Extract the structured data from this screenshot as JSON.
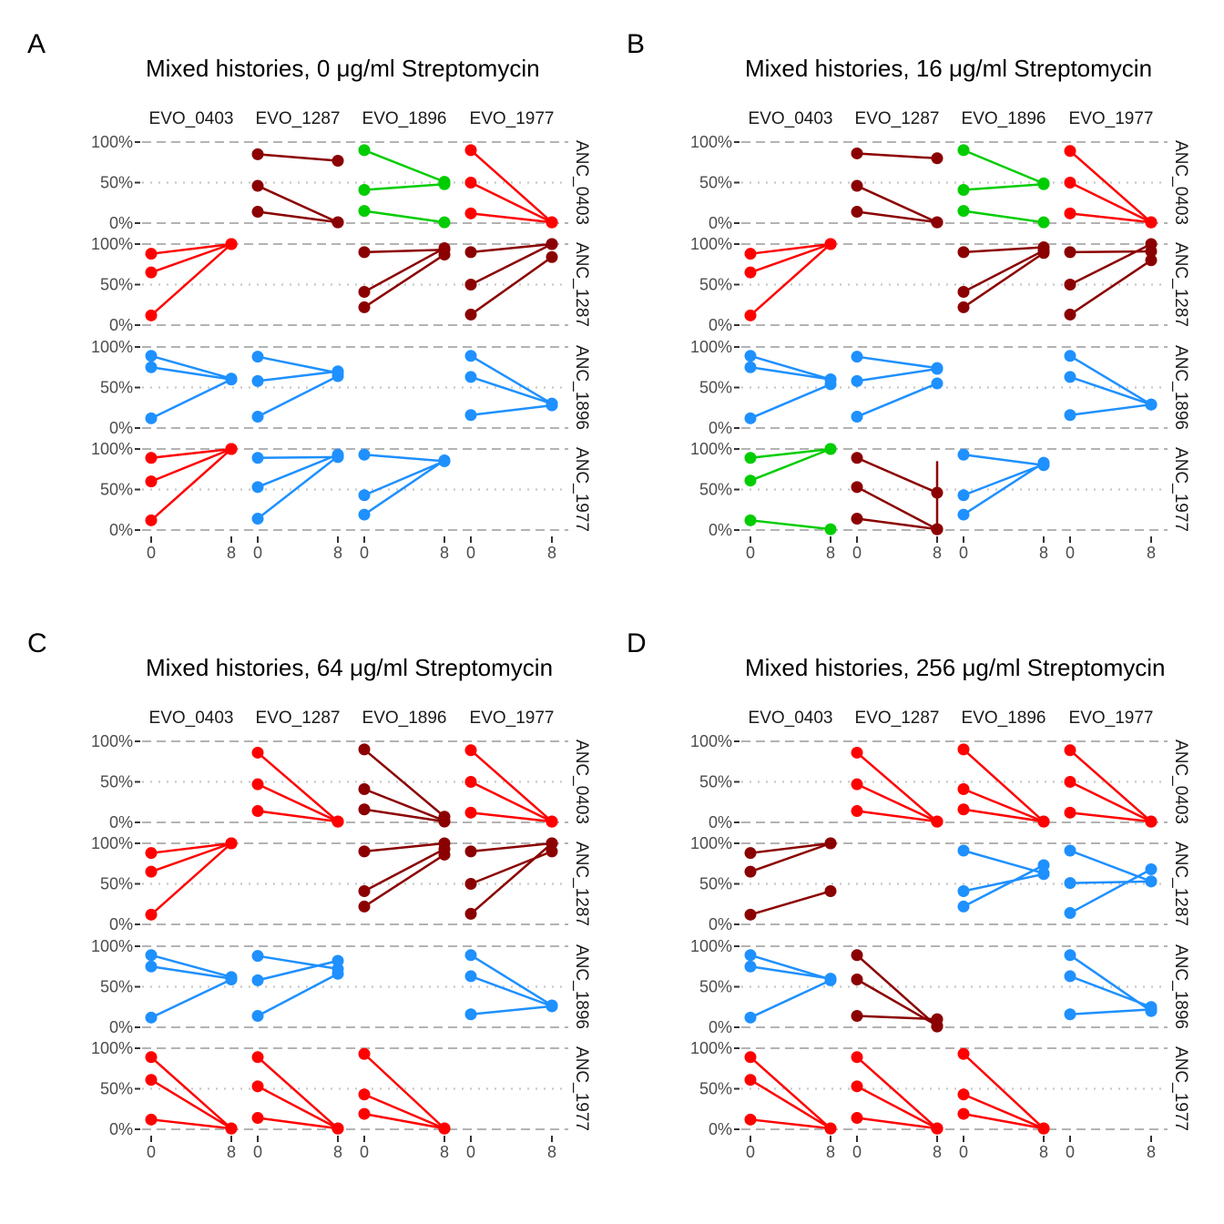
{
  "chart_data": [
    {
      "type": "line",
      "panel_label": "A",
      "title": "Mixed histories, 0 μg/ml Streptomycin",
      "x_ticks": [
        0,
        8
      ],
      "y_ticks": [
        "0%",
        "50%",
        "100%"
      ],
      "ylim": [
        0,
        1
      ],
      "columns": [
        "EVO_0403",
        "EVO_1287",
        "EVO_1896",
        "EVO_1977"
      ],
      "rows": [
        "ANC_0403",
        "ANC_1287",
        "ANC_1896",
        "ANC_1977"
      ],
      "facets": [
        {
          "row": 0,
          "col": 1,
          "color": "#8B0000",
          "lines": [
            [
              0.85,
              0.77
            ],
            [
              0.46,
              0.01
            ],
            [
              0.14,
              0.01
            ]
          ]
        },
        {
          "row": 0,
          "col": 2,
          "color": "#00CD00",
          "lines": [
            [
              0.9,
              0.51
            ],
            [
              0.41,
              0.48
            ],
            [
              0.15,
              0.01
            ]
          ]
        },
        {
          "row": 0,
          "col": 3,
          "color": "#FF0000",
          "lines": [
            [
              0.9,
              0.01
            ],
            [
              0.5,
              0.01
            ],
            [
              0.12,
              0.01
            ]
          ]
        },
        {
          "row": 1,
          "col": 0,
          "color": "#FF0000",
          "lines": [
            [
              0.88,
              1.0
            ],
            [
              0.65,
              1.0
            ],
            [
              0.12,
              1.0
            ]
          ]
        },
        {
          "row": 1,
          "col": 2,
          "color": "#8B0000",
          "lines": [
            [
              0.9,
              0.93
            ],
            [
              0.41,
              0.95
            ],
            [
              0.22,
              0.87
            ]
          ]
        },
        {
          "row": 1,
          "col": 3,
          "color": "#8B0000",
          "lines": [
            [
              0.9,
              1.0
            ],
            [
              0.5,
              1.0
            ],
            [
              0.13,
              0.84
            ]
          ]
        },
        {
          "row": 2,
          "col": 0,
          "color": "#1E90FF",
          "lines": [
            [
              0.89,
              0.61
            ],
            [
              0.75,
              0.6
            ],
            [
              0.12,
              0.6
            ]
          ]
        },
        {
          "row": 2,
          "col": 1,
          "color": "#1E90FF",
          "lines": [
            [
              0.88,
              0.68
            ],
            [
              0.58,
              0.7
            ],
            [
              0.14,
              0.64
            ]
          ]
        },
        {
          "row": 2,
          "col": 3,
          "color": "#1E90FF",
          "lines": [
            [
              0.89,
              0.3
            ],
            [
              0.63,
              0.3
            ],
            [
              0.16,
              0.28
            ]
          ]
        },
        {
          "row": 3,
          "col": 0,
          "color": "#FF0000",
          "lines": [
            [
              0.89,
              1.0
            ],
            [
              0.6,
              1.0
            ],
            [
              0.12,
              1.0
            ]
          ]
        },
        {
          "row": 3,
          "col": 1,
          "color": "#1E90FF",
          "lines": [
            [
              0.89,
              0.9
            ],
            [
              0.53,
              0.93
            ],
            [
              0.14,
              0.91
            ]
          ]
        },
        {
          "row": 3,
          "col": 2,
          "color": "#1E90FF",
          "lines": [
            [
              0.93,
              0.85
            ],
            [
              0.43,
              0.85
            ],
            [
              0.19,
              0.86
            ]
          ]
        }
      ]
    },
    {
      "type": "line",
      "panel_label": "B",
      "title": "Mixed histories, 16 μg/ml Streptomycin",
      "x_ticks": [
        0,
        8
      ],
      "y_ticks": [
        "0%",
        "50%",
        "100%"
      ],
      "ylim": [
        0,
        1
      ],
      "columns": [
        "EVO_0403",
        "EVO_1287",
        "EVO_1896",
        "EVO_1977"
      ],
      "rows": [
        "ANC_0403",
        "ANC_1287",
        "ANC_1896",
        "ANC_1977"
      ],
      "facets": [
        {
          "row": 0,
          "col": 1,
          "color": "#8B0000",
          "lines": [
            [
              0.86,
              0.8
            ],
            [
              0.46,
              0.01
            ],
            [
              0.14,
              0.01
            ]
          ]
        },
        {
          "row": 0,
          "col": 2,
          "color": "#00CD00",
          "lines": [
            [
              0.9,
              0.49
            ],
            [
              0.41,
              0.48
            ],
            [
              0.15,
              0.01
            ]
          ]
        },
        {
          "row": 0,
          "col": 3,
          "color": "#FF0000",
          "lines": [
            [
              0.89,
              0.01
            ],
            [
              0.5,
              0.01
            ],
            [
              0.12,
              0.01
            ]
          ]
        },
        {
          "row": 1,
          "col": 0,
          "color": "#FF0000",
          "lines": [
            [
              0.88,
              1.0
            ],
            [
              0.65,
              1.0
            ],
            [
              0.12,
              1.0
            ]
          ]
        },
        {
          "row": 1,
          "col": 2,
          "color": "#8B0000",
          "lines": [
            [
              0.9,
              0.96
            ],
            [
              0.41,
              0.92
            ],
            [
              0.22,
              0.89
            ]
          ]
        },
        {
          "row": 1,
          "col": 3,
          "color": "#8B0000",
          "lines": [
            [
              0.9,
              0.91
            ],
            [
              0.5,
              1.0
            ],
            [
              0.13,
              0.8
            ]
          ]
        },
        {
          "row": 2,
          "col": 0,
          "color": "#1E90FF",
          "lines": [
            [
              0.89,
              0.6
            ],
            [
              0.75,
              0.6
            ],
            [
              0.12,
              0.54
            ]
          ]
        },
        {
          "row": 2,
          "col": 1,
          "color": "#1E90FF",
          "lines": [
            [
              0.88,
              0.74
            ],
            [
              0.58,
              0.73
            ],
            [
              0.14,
              0.55
            ]
          ]
        },
        {
          "row": 2,
          "col": 3,
          "color": "#1E90FF",
          "lines": [
            [
              0.89,
              0.29
            ],
            [
              0.63,
              0.29
            ],
            [
              0.16,
              0.29
            ]
          ]
        },
        {
          "row": 3,
          "col": 0,
          "color": "#00CD00",
          "lines": [
            [
              0.89,
              1.0
            ],
            [
              0.61,
              1.0
            ],
            [
              0.12,
              0.01
            ]
          ]
        },
        {
          "row": 3,
          "col": 1,
          "color": "#8B0000",
          "lines": [
            [
              0.89,
              0.46
            ],
            [
              0.53,
              0.01
            ],
            [
              0.14,
              0.01
            ]
          ]
        },
        {
          "row": 3,
          "col": 2,
          "color": "#1E90FF",
          "lines": [
            [
              0.93,
              0.8
            ],
            [
              0.43,
              0.81
            ],
            [
              0.19,
              0.83
            ]
          ]
        }
      ],
      "error_bars": [
        {
          "row": 3,
          "col": 1,
          "x": 8,
          "low": 0.0,
          "high": 0.85
        }
      ]
    },
    {
      "type": "line",
      "panel_label": "C",
      "title": "Mixed histories, 64 μg/ml Streptomycin",
      "x_ticks": [
        0,
        8
      ],
      "y_ticks": [
        "0%",
        "50%",
        "100%"
      ],
      "ylim": [
        0,
        1
      ],
      "columns": [
        "EVO_0403",
        "EVO_1287",
        "EVO_1896",
        "EVO_1977"
      ],
      "rows": [
        "ANC_0403",
        "ANC_1287",
        "ANC_1896",
        "ANC_1977"
      ],
      "facets": [
        {
          "row": 0,
          "col": 1,
          "color": "#FF0000",
          "lines": [
            [
              0.86,
              0.01
            ],
            [
              0.47,
              0.01
            ],
            [
              0.14,
              0.01
            ]
          ]
        },
        {
          "row": 0,
          "col": 2,
          "color": "#8B0000",
          "lines": [
            [
              0.9,
              0.07
            ],
            [
              0.41,
              0.02
            ],
            [
              0.16,
              0.01
            ]
          ]
        },
        {
          "row": 0,
          "col": 3,
          "color": "#FF0000",
          "lines": [
            [
              0.89,
              0.01
            ],
            [
              0.5,
              0.01
            ],
            [
              0.12,
              0.01
            ]
          ]
        },
        {
          "row": 1,
          "col": 0,
          "color": "#FF0000",
          "lines": [
            [
              0.88,
              1.0
            ],
            [
              0.65,
              1.0
            ],
            [
              0.12,
              1.0
            ]
          ]
        },
        {
          "row": 1,
          "col": 2,
          "color": "#8B0000",
          "lines": [
            [
              0.9,
              1.0
            ],
            [
              0.41,
              0.93
            ],
            [
              0.22,
              0.86
            ]
          ]
        },
        {
          "row": 1,
          "col": 3,
          "color": "#8B0000",
          "lines": [
            [
              0.9,
              1.0
            ],
            [
              0.5,
              0.9
            ],
            [
              0.13,
              1.0
            ]
          ]
        },
        {
          "row": 2,
          "col": 0,
          "color": "#1E90FF",
          "lines": [
            [
              0.89,
              0.62
            ],
            [
              0.75,
              0.6
            ],
            [
              0.12,
              0.59
            ]
          ]
        },
        {
          "row": 2,
          "col": 1,
          "color": "#1E90FF",
          "lines": [
            [
              0.88,
              0.72
            ],
            [
              0.58,
              0.82
            ],
            [
              0.14,
              0.66
            ]
          ]
        },
        {
          "row": 2,
          "col": 3,
          "color": "#1E90FF",
          "lines": [
            [
              0.89,
              0.27
            ],
            [
              0.63,
              0.26
            ],
            [
              0.16,
              0.26
            ]
          ]
        },
        {
          "row": 3,
          "col": 0,
          "color": "#FF0000",
          "lines": [
            [
              0.89,
              0.01
            ],
            [
              0.61,
              0.01
            ],
            [
              0.12,
              0.01
            ]
          ]
        },
        {
          "row": 3,
          "col": 1,
          "color": "#FF0000",
          "lines": [
            [
              0.89,
              0.01
            ],
            [
              0.53,
              0.01
            ],
            [
              0.14,
              0.01
            ]
          ]
        },
        {
          "row": 3,
          "col": 2,
          "color": "#FF0000",
          "lines": [
            [
              0.93,
              0.01
            ],
            [
              0.43,
              0.01
            ],
            [
              0.19,
              0.01
            ]
          ]
        }
      ]
    },
    {
      "type": "line",
      "panel_label": "D",
      "title": "Mixed histories, 256 μg/ml Streptomycin",
      "x_ticks": [
        0,
        8
      ],
      "y_ticks": [
        "0%",
        "50%",
        "100%"
      ],
      "ylim": [
        0,
        1
      ],
      "columns": [
        "EVO_0403",
        "EVO_1287",
        "EVO_1896",
        "EVO_1977"
      ],
      "rows": [
        "ANC_0403",
        "ANC_1287",
        "ANC_1896",
        "ANC_1977"
      ],
      "facets": [
        {
          "row": 0,
          "col": 1,
          "color": "#FF0000",
          "lines": [
            [
              0.86,
              0.01
            ],
            [
              0.47,
              0.01
            ],
            [
              0.14,
              0.01
            ]
          ]
        },
        {
          "row": 0,
          "col": 2,
          "color": "#FF0000",
          "lines": [
            [
              0.9,
              0.01
            ],
            [
              0.41,
              0.01
            ],
            [
              0.16,
              0.01
            ]
          ]
        },
        {
          "row": 0,
          "col": 3,
          "color": "#FF0000",
          "lines": [
            [
              0.89,
              0.01
            ],
            [
              0.5,
              0.01
            ],
            [
              0.12,
              0.01
            ]
          ]
        },
        {
          "row": 1,
          "col": 0,
          "color": "#8B0000",
          "lines": [
            [
              0.88,
              1.0
            ],
            [
              0.65,
              1.0
            ],
            [
              0.12,
              0.41
            ]
          ]
        },
        {
          "row": 1,
          "col": 2,
          "color": "#1E90FF",
          "lines": [
            [
              0.91,
              0.63
            ],
            [
              0.41,
              0.62
            ],
            [
              0.22,
              0.73
            ]
          ]
        },
        {
          "row": 1,
          "col": 3,
          "color": "#1E90FF",
          "lines": [
            [
              0.91,
              0.53
            ],
            [
              0.51,
              0.53
            ],
            [
              0.14,
              0.68
            ]
          ]
        },
        {
          "row": 2,
          "col": 0,
          "color": "#1E90FF",
          "lines": [
            [
              0.89,
              0.59
            ],
            [
              0.75,
              0.6
            ],
            [
              0.12,
              0.58
            ]
          ]
        },
        {
          "row": 2,
          "col": 1,
          "color": "#8B0000",
          "lines": [
            [
              0.89,
              0.01
            ],
            [
              0.59,
              0.02
            ],
            [
              0.14,
              0.1
            ]
          ]
        },
        {
          "row": 2,
          "col": 3,
          "color": "#1E90FF",
          "lines": [
            [
              0.89,
              0.2
            ],
            [
              0.63,
              0.25
            ],
            [
              0.16,
              0.22
            ]
          ]
        },
        {
          "row": 3,
          "col": 0,
          "color": "#FF0000",
          "lines": [
            [
              0.89,
              0.01
            ],
            [
              0.61,
              0.01
            ],
            [
              0.12,
              0.01
            ]
          ]
        },
        {
          "row": 3,
          "col": 1,
          "color": "#FF0000",
          "lines": [
            [
              0.89,
              0.01
            ],
            [
              0.53,
              0.01
            ],
            [
              0.14,
              0.01
            ]
          ]
        },
        {
          "row": 3,
          "col": 2,
          "color": "#FF0000",
          "lines": [
            [
              0.93,
              0.01
            ],
            [
              0.43,
              0.01
            ],
            [
              0.19,
              0.01
            ]
          ]
        }
      ]
    }
  ]
}
